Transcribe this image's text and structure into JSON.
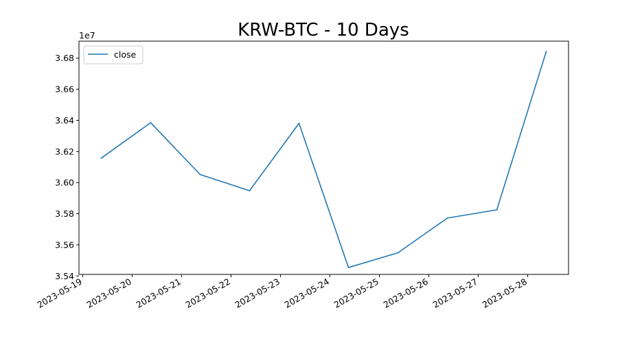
{
  "chart_data": {
    "type": "line",
    "title": "KRW-BTC - 10 Days",
    "xlabel": "",
    "ylabel": "",
    "y_offset_label": "1e7",
    "x": [
      "2023-05-19 09:00",
      "2023-05-20 09:00",
      "2023-05-21 09:00",
      "2023-05-22 09:00",
      "2023-05-23 09:00",
      "2023-05-24 09:00",
      "2023-05-25 09:00",
      "2023-05-26 09:00",
      "2023-05-27 09:00",
      "2023-05-28 09:00"
    ],
    "series": [
      {
        "name": "close",
        "color": "#1f77b4",
        "values": [
          36157000,
          36385000,
          36052000,
          35948000,
          36381000,
          35454000,
          35549000,
          35772000,
          35825000,
          36843000
        ]
      }
    ],
    "xlim": [
      "2023-05-18 22:12",
      "2023-05-28 19:48"
    ],
    "ylim": [
      35410000,
      36909000
    ],
    "x_ticks": [
      "2023-05-19",
      "2023-05-20",
      "2023-05-21",
      "2023-05-22",
      "2023-05-23",
      "2023-05-24",
      "2023-05-25",
      "2023-05-26",
      "2023-05-27",
      "2023-05-28"
    ],
    "y_ticks": [
      35400000,
      35600000,
      35800000,
      36000000,
      36200000,
      36400000,
      36600000,
      36800000
    ],
    "y_tick_labels": [
      "3.54",
      "3.56",
      "3.58",
      "3.60",
      "3.62",
      "3.64",
      "3.66",
      "3.68"
    ],
    "grid": false,
    "legend_position": "upper left"
  }
}
